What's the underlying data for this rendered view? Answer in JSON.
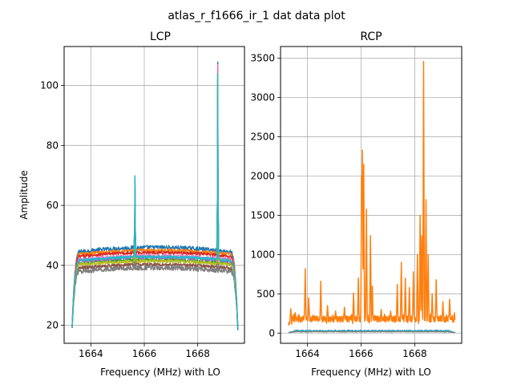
{
  "figure": {
    "suptitle": "atlas_r_f1666_ir_1 dat data plot"
  },
  "chart_data": [
    {
      "type": "line",
      "title": "LCP",
      "xlabel": "Frequency (MHz) with LO",
      "ylabel": "Amplitude",
      "xlim": [
        1663.0,
        1669.75
      ],
      "ylim": [
        14,
        113
      ],
      "xticks": [
        1664,
        1666,
        1668
      ],
      "yticks": [
        20,
        40,
        60,
        80,
        100
      ],
      "grid": true,
      "legend": "none",
      "band": {
        "x_start": 1663.3,
        "x_end": 1669.5,
        "edge_width": 0.3
      },
      "series": [
        {
          "color": "#1f77b4",
          "level": 46.0,
          "droop": 1.8,
          "noise": 0.7
        },
        {
          "color": "#ff7f0e",
          "level": 45.0,
          "droop": 1.7,
          "noise": 0.6
        },
        {
          "color": "#2ca02c",
          "level": 41.8,
          "droop": 1.5,
          "noise": 0.5
        },
        {
          "color": "#d62728",
          "level": 44.3,
          "droop": 1.6,
          "noise": 0.5
        },
        {
          "color": "#9467bd",
          "level": 42.6,
          "droop": 1.5,
          "noise": 0.5
        },
        {
          "color": "#8c564b",
          "level": 40.3,
          "droop": 1.5,
          "noise": 0.6
        },
        {
          "color": "#e377c2",
          "level": 43.2,
          "droop": 1.5,
          "noise": 0.5
        },
        {
          "color": "#7f7f7f",
          "level": 39.2,
          "droop": 1.5,
          "noise": 0.8
        },
        {
          "color": "#bcbd22",
          "level": 41.4,
          "droop": 1.4,
          "noise": 0.5
        },
        {
          "color": "#17becf",
          "level": 42.9,
          "droop": 1.5,
          "noise": 0.4
        }
      ],
      "peaks": [
        {
          "x": 1665.65,
          "heights": [
            70,
            68,
            66,
            69,
            67,
            65,
            68,
            64,
            66,
            70
          ]
        },
        {
          "x": 1668.75,
          "heights": [
            108,
            107,
            105,
            106,
            104,
            103,
            107,
            102,
            104,
            104
          ]
        }
      ]
    },
    {
      "type": "line",
      "title": "RCP",
      "xlabel": "Frequency (MHz) with LO",
      "ylabel": "",
      "xlim": [
        1663.0,
        1669.75
      ],
      "ylim": [
        -130,
        3650
      ],
      "xticks": [
        1664,
        1666,
        1668
      ],
      "yticks": [
        0,
        500,
        1000,
        1500,
        2000,
        2500,
        3000,
        3500
      ],
      "grid": true,
      "legend": "none",
      "series": [
        {
          "color": "#ff7f0e",
          "baseline": 180,
          "noise": 40,
          "spikes": [
            [
              1663.38,
              310
            ],
            [
              1663.55,
              260
            ],
            [
              1663.92,
              820
            ],
            [
              1664.05,
              450
            ],
            [
              1664.5,
              660
            ],
            [
              1664.75,
              350
            ],
            [
              1665.05,
              280
            ],
            [
              1665.38,
              330
            ],
            [
              1665.72,
              510
            ],
            [
              1665.9,
              700
            ],
            [
              1666.02,
              2000
            ],
            [
              1666.05,
              2330
            ],
            [
              1666.1,
              2150
            ],
            [
              1666.2,
              1580
            ],
            [
              1666.35,
              1240
            ],
            [
              1666.42,
              600
            ],
            [
              1666.75,
              300
            ],
            [
              1667.1,
              280
            ],
            [
              1667.35,
              620
            ],
            [
              1667.5,
              900
            ],
            [
              1667.65,
              700
            ],
            [
              1667.8,
              580
            ],
            [
              1667.95,
              780
            ],
            [
              1668.1,
              1000
            ],
            [
              1668.2,
              1500
            ],
            [
              1668.26,
              1240
            ],
            [
              1668.33,
              3460
            ],
            [
              1668.42,
              1700
            ],
            [
              1668.5,
              1000
            ],
            [
              1668.65,
              500
            ],
            [
              1668.8,
              680
            ],
            [
              1669.05,
              400
            ],
            [
              1669.3,
              430
            ],
            [
              1669.48,
              260
            ]
          ]
        },
        {
          "color": "#1f77b4",
          "level": 30,
          "noise": 6
        },
        {
          "color": "#2ca02c",
          "level": 22,
          "noise": 5
        },
        {
          "color": "#17becf",
          "level": 26,
          "noise": 4
        },
        {
          "color": "#7f7f7f",
          "level": 18,
          "noise": 4
        }
      ]
    }
  ]
}
